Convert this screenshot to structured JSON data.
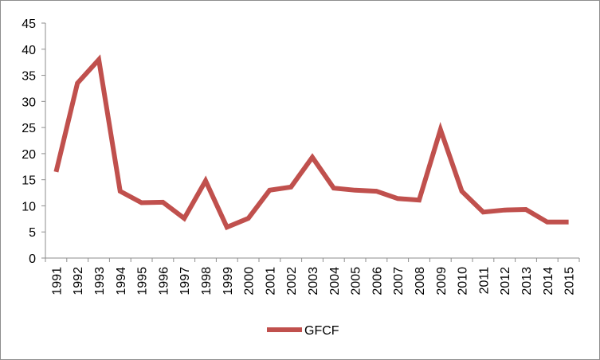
{
  "chart_data": {
    "type": "line",
    "x": [
      "1991",
      "1992",
      "1993",
      "1994",
      "1995",
      "1996",
      "1997",
      "1998",
      "1999",
      "2000",
      "2001",
      "2002",
      "2003",
      "2004",
      "2005",
      "2006",
      "2007",
      "2008",
      "2009",
      "2010",
      "2011",
      "2012",
      "2013",
      "2014",
      "2015"
    ],
    "series": [
      {
        "name": "GFCF",
        "color": "#c0504d",
        "values": [
          16.5,
          33.5,
          38.0,
          12.8,
          10.6,
          10.7,
          7.6,
          14.8,
          5.9,
          7.6,
          13.0,
          13.6,
          19.3,
          13.4,
          13.0,
          12.8,
          11.4,
          11.1,
          24.6,
          12.8,
          8.8,
          9.2,
          9.3,
          6.9,
          6.9
        ]
      }
    ],
    "ylim": [
      0,
      45
    ],
    "yticks": [
      0,
      5,
      10,
      15,
      20,
      25,
      30,
      35,
      40,
      45
    ],
    "grid": false,
    "legend": "bottom"
  }
}
